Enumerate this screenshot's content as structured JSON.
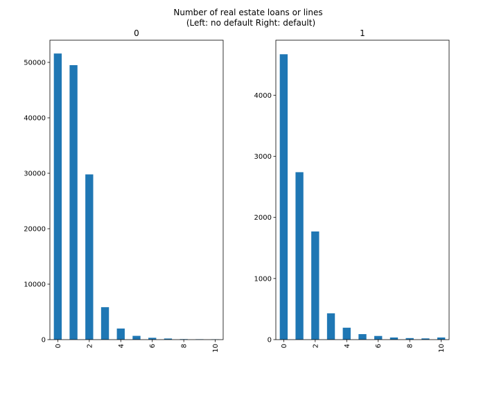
{
  "figure": {
    "title_line1": "Number of real estate loans or lines",
    "title_line2": "(Left: no default Right: default)"
  },
  "colors": {
    "bar": "#1f77b4",
    "axes": "#000000",
    "background": "#ffffff"
  },
  "chart_data": [
    {
      "type": "bar",
      "title": "0",
      "xlabel": "",
      "ylabel": "",
      "x": [
        0,
        1,
        2,
        3,
        4,
        5,
        6,
        7,
        8,
        9,
        10
      ],
      "values": [
        51600,
        49500,
        29800,
        5850,
        2000,
        680,
        330,
        200,
        90,
        70,
        60
      ],
      "xticks": [
        "0",
        "2",
        "4",
        "6",
        "8",
        "10"
      ],
      "yticks": [
        "0",
        "10000",
        "20000",
        "30000",
        "40000",
        "50000"
      ],
      "ylim": [
        0,
        54000
      ],
      "xlim": [
        -0.5,
        10.5
      ],
      "grid": false,
      "legend": "none"
    },
    {
      "type": "bar",
      "title": "1",
      "xlabel": "",
      "ylabel": "",
      "x": [
        0,
        1,
        2,
        3,
        4,
        5,
        6,
        7,
        8,
        9,
        10
      ],
      "values": [
        4670,
        2740,
        1770,
        430,
        195,
        90,
        60,
        35,
        25,
        20,
        35
      ],
      "xticks": [
        "0",
        "2",
        "4",
        "6",
        "8",
        "10"
      ],
      "yticks": [
        "0",
        "1000",
        "2000",
        "3000",
        "4000"
      ],
      "ylim": [
        0,
        4900
      ],
      "xlim": [
        -0.5,
        10.5
      ],
      "grid": false,
      "legend": "none"
    }
  ]
}
